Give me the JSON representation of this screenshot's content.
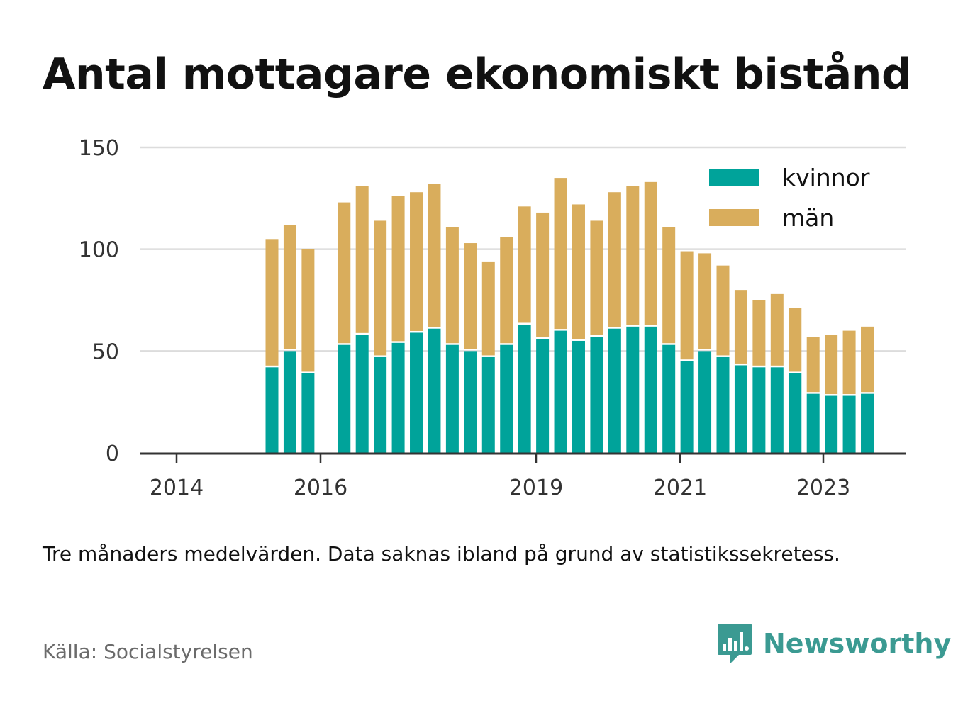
{
  "title": "Antal mottagare ekonomiskt bistånd",
  "note": "Tre månaders medelvärden. Data saknas ibland på grund av statistikssekretess.",
  "source": "Källa: Socialstyrelsen",
  "brand": "Newsworthy",
  "colors": {
    "kvinnor": "#00a39a",
    "man": "#d9ad5c",
    "brand": "#3b9a92"
  },
  "chart_data": {
    "type": "bar",
    "stacked": true,
    "ylim": [
      0,
      150
    ],
    "yticks": [
      0,
      50,
      100,
      150
    ],
    "xticks": [
      "2014",
      "2016",
      "2019",
      "2021",
      "2023"
    ],
    "legend": {
      "position": "top-right",
      "entries": [
        "kvinnor",
        "män"
      ]
    },
    "series": [
      {
        "name": "kvinnor",
        "values": [
          42,
          50,
          39,
          null,
          53,
          58,
          47,
          54,
          59,
          61,
          53,
          50,
          47,
          53,
          63,
          56,
          60,
          55,
          57,
          61,
          62,
          62,
          53,
          45,
          50,
          47,
          43,
          42,
          42,
          39,
          29,
          28,
          28,
          29
        ]
      },
      {
        "name": "män",
        "values": [
          63,
          62,
          61,
          null,
          70,
          73,
          67,
          72,
          69,
          71,
          58,
          53,
          47,
          53,
          58,
          62,
          75,
          67,
          57,
          67,
          69,
          71,
          58,
          54,
          48,
          45,
          37,
          33,
          36,
          32,
          28,
          30,
          32,
          33
        ]
      }
    ]
  }
}
